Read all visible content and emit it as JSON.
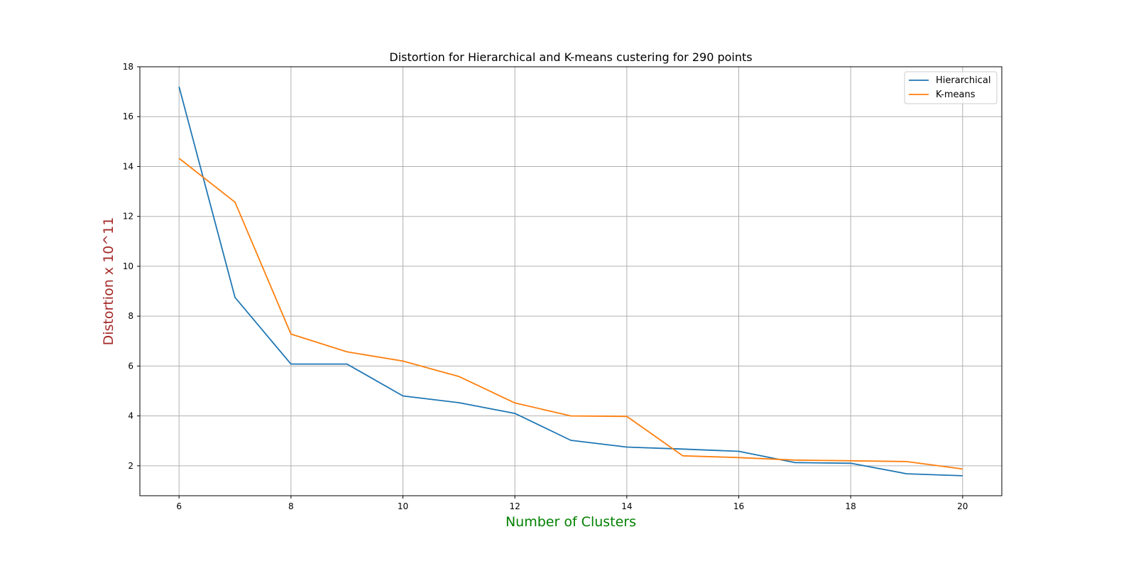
{
  "chart_data": {
    "type": "line",
    "title": "Distortion for Hierarchical and K-means custering for 290 points",
    "xlabel": "Number of Clusters",
    "ylabel": "Distortion x 10^11",
    "xlabel_color": "#008000",
    "ylabel_color": "#a52a2a",
    "x": [
      6,
      7,
      8,
      9,
      10,
      11,
      12,
      13,
      14,
      15,
      16,
      17,
      18,
      19,
      20
    ],
    "xlim": [
      5.3,
      20.7
    ],
    "ylim": [
      0.8,
      18
    ],
    "xticks": [
      6,
      8,
      10,
      12,
      14,
      16,
      18,
      20
    ],
    "yticks": [
      2,
      4,
      6,
      8,
      10,
      12,
      14,
      16,
      18
    ],
    "grid": true,
    "legend_position": "top-right",
    "series": [
      {
        "name": "Hierarchical",
        "color": "#1f77b4",
        "values": [
          17.2,
          8.75,
          6.08,
          6.08,
          4.8,
          4.53,
          4.1,
          3.02,
          2.75,
          2.67,
          2.58,
          2.13,
          2.1,
          1.68,
          1.6
        ]
      },
      {
        "name": "K-means",
        "color": "#ff7f0e",
        "values": [
          14.33,
          12.57,
          7.28,
          6.57,
          6.2,
          5.58,
          4.52,
          4.0,
          3.98,
          2.4,
          2.33,
          2.23,
          2.2,
          2.17,
          1.87
        ]
      }
    ]
  }
}
